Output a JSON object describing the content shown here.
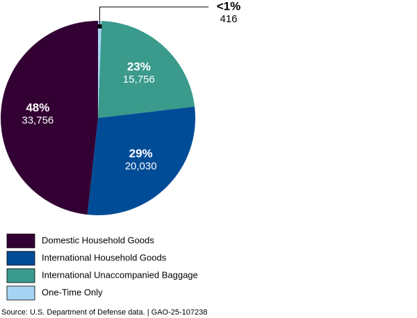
{
  "chart_data": {
    "type": "pie",
    "categories": [
      "Domestic Household Goods",
      "International Household Goods",
      "International Unaccompanied Baggage",
      "One-Time Only"
    ],
    "values": [
      33756,
      20030,
      15756,
      416
    ],
    "value_labels": [
      "33,756",
      "20,030",
      "15,756",
      "416"
    ],
    "percent_labels": [
      "48%",
      "29%",
      "23%",
      "<1%"
    ],
    "colors": [
      "#330033",
      "#004c97",
      "#3a9a8c",
      "#a8d4f4"
    ],
    "source": "Source: U.S. Department of Defense data.  |  GAO-25-107238"
  }
}
